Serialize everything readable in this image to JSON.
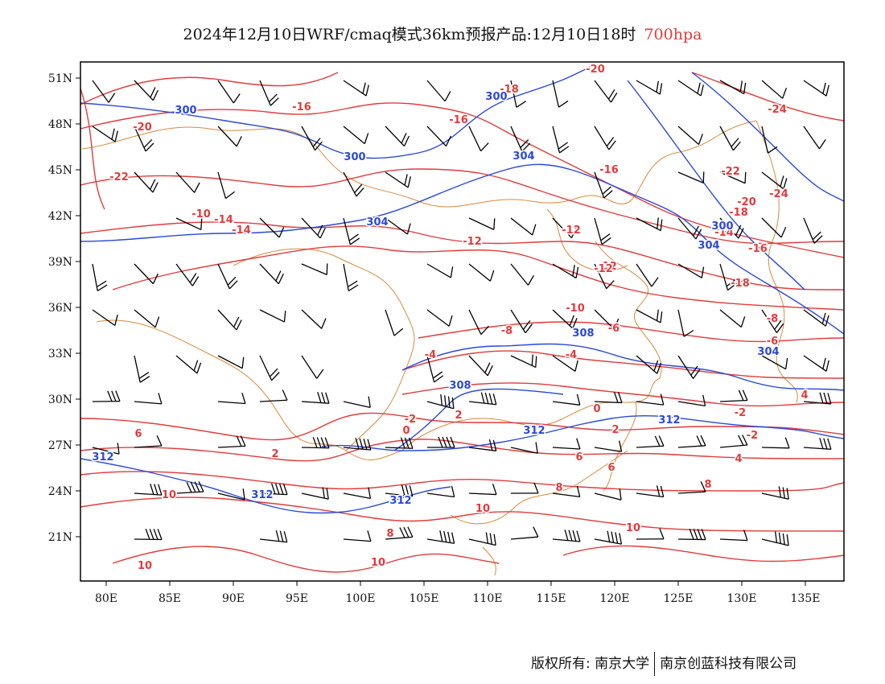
{
  "title": {
    "main": "2024年12月10日WRF/cmaq模式36km预报产品:12月10日18时",
    "level": "700hpa"
  },
  "map": {
    "lat_labels": [
      "51N",
      "48N",
      "45N",
      "42N",
      "39N",
      "36N",
      "33N",
      "30N",
      "27N",
      "24N",
      "21N"
    ],
    "lon_labels": [
      "80E",
      "85E",
      "90E",
      "95E",
      "100E",
      "105E",
      "110E",
      "115E",
      "120E",
      "125E",
      "130E",
      "135E"
    ],
    "extent": {
      "lon": [
        78,
        138
      ],
      "lat": [
        18,
        52
      ]
    }
  },
  "temp_labels": [
    "-20",
    "-18",
    "-16",
    "-20",
    "-24",
    "-22",
    "-24",
    "-22",
    "-20",
    "-18",
    "-16",
    "-16",
    "-14",
    "-12",
    "-14",
    "-12",
    "-12",
    "-16",
    "-14",
    "-18",
    "-10",
    "-8",
    "-6",
    "-6",
    "-4",
    "-4",
    "-8",
    "-2",
    "-2",
    "2",
    "0",
    "-2",
    "0",
    "2",
    "2",
    "4",
    "6",
    "6",
    "4",
    "6",
    "8",
    "8",
    "10",
    "10",
    "10",
    "10",
    "10",
    "8",
    "-12",
    "-10"
  ],
  "height_labels": [
    "300",
    "300",
    "300",
    "304",
    "304",
    "304",
    "300",
    "308",
    "308",
    "312",
    "312",
    "312",
    "312",
    "312",
    "304"
  ],
  "colors": {
    "temperature": "#e23b3b",
    "height": "#2a48d8",
    "border": "#d9893a",
    "wind": "#000000"
  },
  "footer": {
    "left": "版权所有: 南京大学",
    "right": "南京创蓝科技有限公司"
  }
}
